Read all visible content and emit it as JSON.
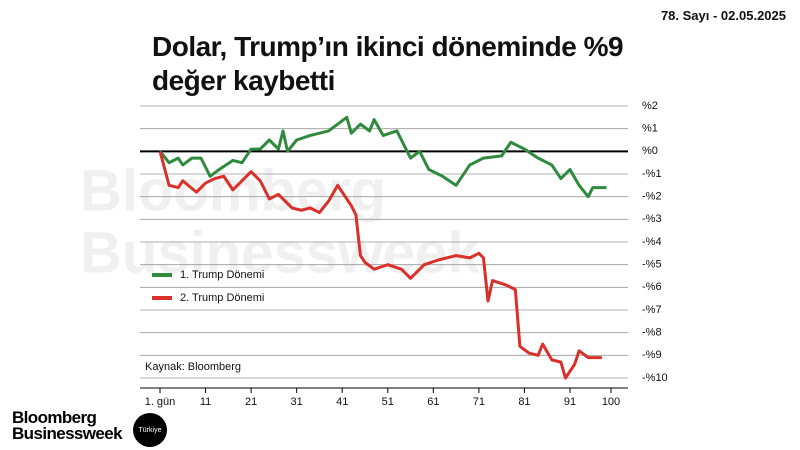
{
  "issue": "78. Sayı - 02.05.2025",
  "brand": {
    "name": "Bloomberg Businessweek",
    "badge": "Türkiye"
  },
  "chart_data": {
    "type": "line",
    "title": "Dolar, Trump’ın ikinci döneminde %9 değer kaybetti",
    "watermark": [
      "Bloomberg",
      "Businessweek"
    ],
    "source": "Kaynak: Bloomberg",
    "xlim": [
      1,
      100
    ],
    "xticks": [
      {
        "value": 1,
        "label": "1. gün"
      },
      11,
      21,
      31,
      41,
      51,
      61,
      71,
      81,
      91,
      100
    ],
    "ylim": [
      -10,
      2
    ],
    "yticks": [
      {
        "value": 2,
        "label": "%2"
      },
      {
        "value": 1,
        "label": "%1"
      },
      {
        "value": 0,
        "label": "%0"
      },
      {
        "value": -1,
        "label": "-%1"
      },
      {
        "value": -2,
        "label": "-%2"
      },
      {
        "value": -3,
        "label": "-%3"
      },
      {
        "value": -4,
        "label": "-%4"
      },
      {
        "value": -5,
        "label": "-%5"
      },
      {
        "value": -6,
        "label": "-%6"
      },
      {
        "value": -7,
        "label": "-%7"
      },
      {
        "value": -8,
        "label": "-%8"
      },
      {
        "value": -9,
        "label": "-%9"
      },
      {
        "value": -10,
        "label": "-%10"
      }
    ],
    "grid": true,
    "series": [
      {
        "name": "1. Trump Dönemi",
        "color": "#2e8b3e",
        "x": [
          1,
          3,
          5,
          6,
          8,
          10,
          12,
          14,
          17,
          19,
          21,
          23,
          25,
          27,
          28,
          29,
          31,
          34,
          38,
          42,
          43,
          45,
          47,
          48,
          50,
          53,
          56,
          58,
          60,
          63,
          66,
          69,
          72,
          76,
          78,
          81,
          84,
          87,
          89,
          91,
          93,
          95,
          96,
          99
        ],
        "values": [
          0,
          -0.5,
          -0.3,
          -0.6,
          -0.3,
          -0.3,
          -1.1,
          -0.8,
          -0.4,
          -0.5,
          0.1,
          0.1,
          0.5,
          0.1,
          0.9,
          0,
          0.5,
          0.7,
          0.9,
          1.5,
          0.8,
          1.2,
          0.9,
          1.4,
          0.7,
          0.9,
          -0.3,
          0,
          -0.8,
          -1.1,
          -1.5,
          -0.6,
          -0.3,
          -0.2,
          0.4,
          0.1,
          -0.3,
          -0.6,
          -1.2,
          -0.8,
          -1.5,
          -2,
          -1.6,
          -1.6
        ]
      },
      {
        "name": "2. Trump Dönemi",
        "color": "#d9302a",
        "x": [
          1,
          3,
          5,
          6,
          9,
          11,
          13,
          15,
          17,
          19,
          21,
          23,
          25,
          27,
          30,
          32,
          34,
          36,
          38,
          40,
          43,
          44,
          45,
          46,
          48,
          51,
          54,
          56,
          59,
          62,
          66,
          69,
          71,
          72,
          73,
          74,
          77,
          79,
          80,
          82,
          84,
          85,
          87,
          89,
          90,
          92,
          93,
          95,
          98
        ],
        "values": [
          0,
          -1.5,
          -1.6,
          -1.3,
          -1.8,
          -1.4,
          -1.2,
          -1.1,
          -1.7,
          -1.3,
          -0.9,
          -1.3,
          -2.1,
          -1.9,
          -2.5,
          -2.6,
          -2.5,
          -2.7,
          -2.2,
          -1.5,
          -2.4,
          -2.8,
          -4.6,
          -4.9,
          -5.2,
          -5,
          -5.2,
          -5.6,
          -5,
          -4.8,
          -4.6,
          -4.7,
          -4.5,
          -4.7,
          -6.6,
          -5.7,
          -5.9,
          -6.1,
          -8.6,
          -8.9,
          -9,
          -8.5,
          -9.2,
          -9.3,
          -10,
          -9.4,
          -8.8,
          -9.1,
          -9.1
        ]
      }
    ],
    "legend": "left"
  }
}
